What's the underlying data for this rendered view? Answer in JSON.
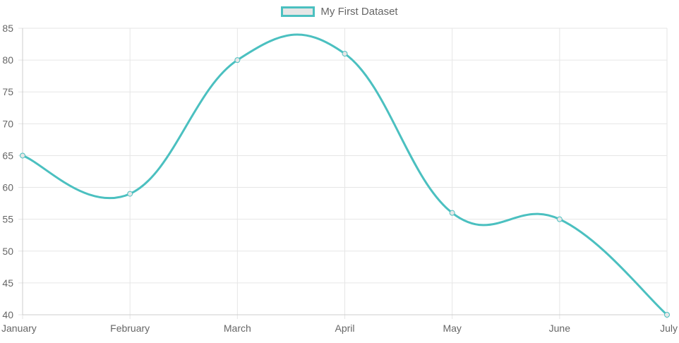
{
  "chart_data": {
    "type": "line",
    "categories": [
      "January",
      "February",
      "March",
      "April",
      "May",
      "June",
      "July"
    ],
    "series": [
      {
        "name": "My First Dataset",
        "values": [
          65,
          59,
          80,
          81,
          56,
          55,
          40
        ],
        "color": "#4bc0c0",
        "fill": "#e6e6e6"
      }
    ],
    "ylim": [
      40,
      85
    ],
    "yticks": [
      "40",
      "45",
      "50",
      "55",
      "60",
      "65",
      "70",
      "75",
      "80",
      "85"
    ],
    "grid": true,
    "legend": "top-center",
    "colors": {
      "line": "#4bc0c0",
      "grid": "#e6e6e6",
      "axis": "#cccccc",
      "text": "#666666"
    }
  }
}
